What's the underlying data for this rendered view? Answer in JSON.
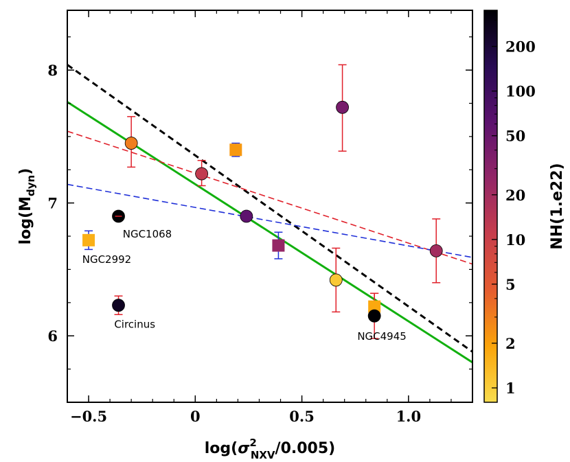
{
  "chart_data": {
    "type": "scatter",
    "xlabel_main": "log(",
    "xlabel_sigma": "σ",
    "xlabel_sup": "2",
    "xlabel_sub": "NXV",
    "xlabel_tail": "/0.005)",
    "ylabel_main": "log(M",
    "ylabel_sub": "dyn",
    "ylabel_tail": ")",
    "xlim": [
      -0.6,
      1.3
    ],
    "ylim": [
      5.5,
      8.45
    ],
    "xticks": [
      {
        "value": -0.5,
        "label": "−0.5"
      },
      {
        "value": 0,
        "label": "0"
      },
      {
        "value": 0.5,
        "label": "0.5"
      },
      {
        "value": 1.0,
        "label": "1.0"
      }
    ],
    "yticks": [
      {
        "value": 6,
        "label": "6"
      },
      {
        "value": 7,
        "label": "7"
      },
      {
        "value": 8,
        "label": "8"
      }
    ],
    "colorbar": {
      "label": "NH(1.e22)",
      "scale": "log",
      "range": [
        0.8,
        350
      ],
      "ticks": [
        {
          "value": 1,
          "label": "1"
        },
        {
          "value": 2,
          "label": "2"
        },
        {
          "value": 5,
          "label": "5"
        },
        {
          "value": 10,
          "label": "10"
        },
        {
          "value": 20,
          "label": "20"
        },
        {
          "value": 50,
          "label": "50"
        },
        {
          "value": 100,
          "label": "100"
        },
        {
          "value": 200,
          "label": "200"
        }
      ],
      "stops": [
        "#f8dd4f",
        "#fba40a",
        "#e55c30",
        "#c73e4c",
        "#932667",
        "#5c126e",
        "#280b53",
        "#000004"
      ]
    },
    "points": [
      {
        "x": -0.3,
        "y": 7.45,
        "err": [
          0.2,
          0.18
        ],
        "nh": 3,
        "marker": "circle",
        "errcolor": "#e0202a"
      },
      {
        "x": 0.03,
        "y": 7.22,
        "err": [
          0.1,
          0.09
        ],
        "nh": 12,
        "marker": "circle",
        "errcolor": "#e0202a"
      },
      {
        "x": 0.19,
        "y": 7.4,
        "err": [
          0.05,
          0.05
        ],
        "nh": 2.2,
        "marker": "square",
        "errcolor": "#1f2fd8"
      },
      {
        "x": 0.69,
        "y": 7.72,
        "err": [
          0.32,
          0.33
        ],
        "nh": 40,
        "marker": "circle",
        "errcolor": "#e0202a"
      },
      {
        "x": 0.24,
        "y": 6.9,
        "err": [
          0,
          0
        ],
        "nh": 60,
        "marker": "circle",
        "errcolor": "#e0202a"
      },
      {
        "x": 0.39,
        "y": 6.68,
        "err": [
          0.1,
          0.1
        ],
        "nh": 25,
        "marker": "square",
        "errcolor": "#1f2fd8"
      },
      {
        "x": 0.66,
        "y": 6.42,
        "err": [
          0.24,
          0.24
        ],
        "nh": 1.1,
        "marker": "circle",
        "errcolor": "#e0202a"
      },
      {
        "x": 0.84,
        "y": 6.22,
        "err": [
          0.1,
          0.1
        ],
        "nh": 1.8,
        "marker": "square",
        "errcolor": "#e0202a"
      },
      {
        "x": 0.84,
        "y": 6.15,
        "err": [
          0.17,
          0.17
        ],
        "nh": 400,
        "marker": "circle",
        "errcolor": "#e0202a"
      },
      {
        "x": 1.13,
        "y": 6.64,
        "err": [
          0.24,
          0.24
        ],
        "nh": 20,
        "marker": "circle",
        "errcolor": "#e0202a"
      },
      {
        "x": -0.36,
        "y": 6.9,
        "err": [
          0.02,
          0.02
        ],
        "nh": 400,
        "marker": "circle",
        "errcolor": "#e0202a",
        "errh": true
      },
      {
        "x": -0.5,
        "y": 6.72,
        "err": [
          0.07,
          0.07
        ],
        "nh": 1.6,
        "marker": "square",
        "errcolor": "#1f2fd8"
      },
      {
        "x": -0.36,
        "y": 6.23,
        "err": [
          0.07,
          0.07
        ],
        "nh": 250,
        "marker": "circle",
        "errcolor": "#e0202a"
      }
    ],
    "lines": [
      {
        "name": "green-fit",
        "x": [
          -0.6,
          1.3
        ],
        "y": [
          7.76,
          5.8
        ],
        "color": "#12b00f",
        "dash": "",
        "width": 3
      },
      {
        "name": "black-fit",
        "x": [
          -0.6,
          1.3
        ],
        "y": [
          8.04,
          5.88
        ],
        "color": "#000000",
        "dash": "9,6",
        "width": 3
      },
      {
        "name": "red-fit",
        "x": [
          -0.6,
          1.3
        ],
        "y": [
          7.54,
          6.54
        ],
        "color": "#e0202a",
        "dash": "9,5",
        "width": 1.6
      },
      {
        "name": "blue-fit",
        "x": [
          -0.6,
          1.3
        ],
        "y": [
          7.14,
          6.59
        ],
        "color": "#1f2fd8",
        "dash": "9,5",
        "width": 1.6
      }
    ],
    "annotations": [
      {
        "text": "NGC1068",
        "x": -0.34,
        "y": 6.74,
        "color": "#000000",
        "anchor": "start"
      },
      {
        "text": "NGC2992",
        "x": -0.53,
        "y": 6.55,
        "color": "#e0202a",
        "anchor": "start"
      },
      {
        "text": "Circinus",
        "x": -0.38,
        "y": 6.06,
        "color": "#000000",
        "anchor": "start"
      },
      {
        "text": "NGC4945",
        "x": 0.76,
        "y": 5.97,
        "color": "#000000",
        "anchor": "start"
      }
    ]
  }
}
